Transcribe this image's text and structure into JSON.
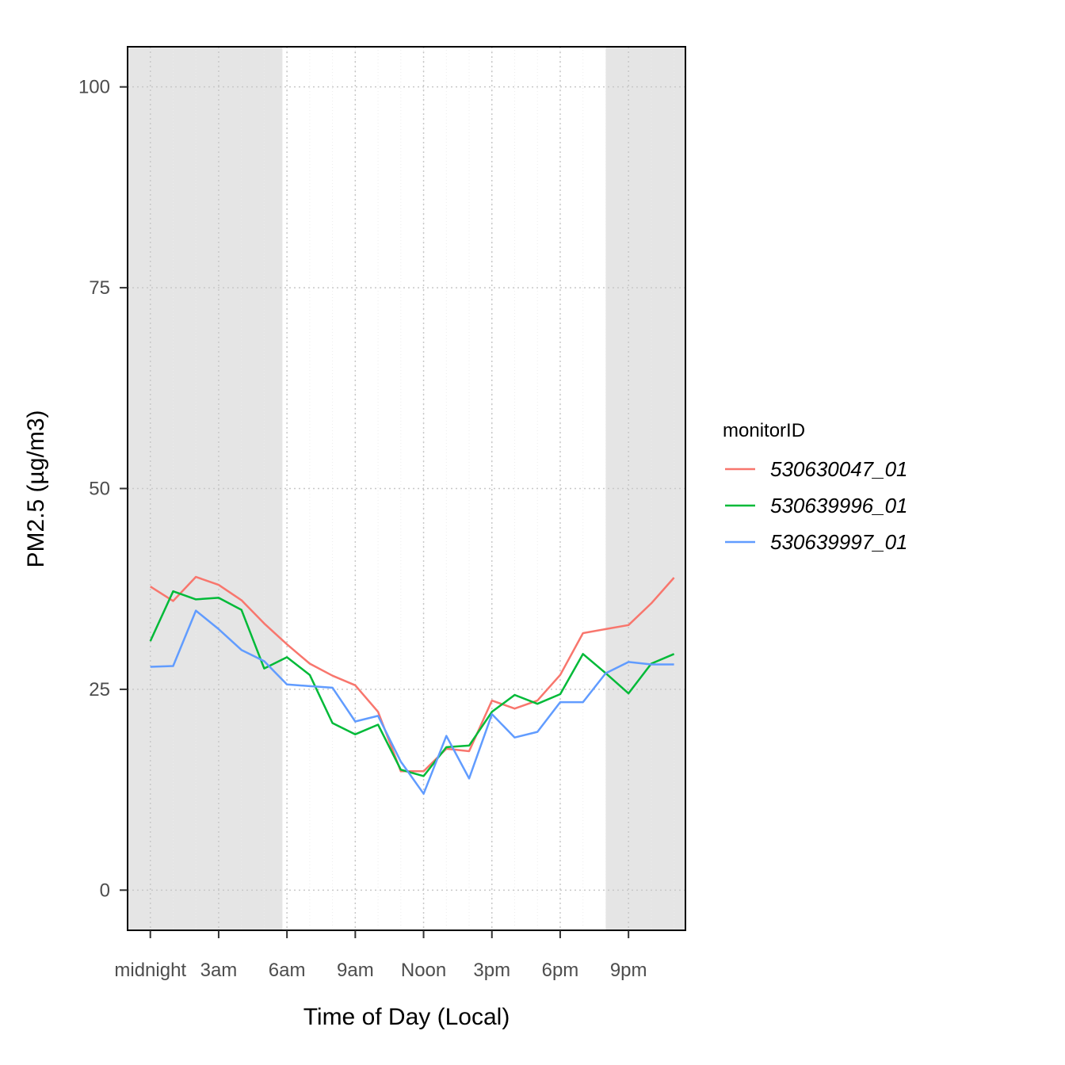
{
  "chart_data": {
    "type": "line",
    "xlabel": "Time of Day (Local)",
    "ylabel": "PM2.5 (µg/m3)",
    "xlim": [
      -1,
      23.5
    ],
    "ylim": [
      -5,
      105
    ],
    "x_ticks": [
      {
        "value": 0,
        "label": "midnight"
      },
      {
        "value": 3,
        "label": "3am"
      },
      {
        "value": 6,
        "label": "6am"
      },
      {
        "value": 9,
        "label": "9am"
      },
      {
        "value": 12,
        "label": "Noon"
      },
      {
        "value": 15,
        "label": "3pm"
      },
      {
        "value": 18,
        "label": "6pm"
      },
      {
        "value": 21,
        "label": "9pm"
      }
    ],
    "y_ticks": [
      0,
      25,
      50,
      75,
      100
    ],
    "night_shading": [
      {
        "start": -1,
        "end": 5.8
      },
      {
        "start": 20.0,
        "end": 23.5
      }
    ],
    "shading_color": "#e5e5e5",
    "grid": true,
    "legend": {
      "title": "monitorID",
      "placement": "right"
    },
    "x": [
      0,
      1,
      2,
      3,
      4,
      5,
      6,
      7,
      8,
      9,
      10,
      11,
      12,
      13,
      14,
      15,
      16,
      17,
      18,
      19,
      20,
      21,
      22,
      23
    ],
    "series": [
      {
        "name": "530630047_01",
        "color": "#f8766d",
        "values": [
          37.8,
          36.0,
          39.0,
          38.0,
          36.1,
          33.2,
          30.6,
          28.2,
          26.7,
          25.5,
          22.2,
          14.8,
          14.8,
          17.6,
          17.3,
          23.6,
          22.6,
          23.6,
          26.8,
          32.0,
          32.5,
          33.0,
          35.7,
          38.9
        ]
      },
      {
        "name": "530639996_01",
        "color": "#00ba38",
        "values": [
          31.0,
          37.2,
          36.2,
          36.4,
          34.9,
          27.6,
          29.0,
          26.8,
          20.8,
          19.4,
          20.6,
          15.0,
          14.2,
          17.8,
          18.0,
          22.2,
          24.3,
          23.2,
          24.4,
          29.4,
          27.0,
          24.5,
          28.2,
          29.4
        ]
      },
      {
        "name": "530639997_01",
        "color": "#619cff",
        "values": [
          27.8,
          27.9,
          34.8,
          32.5,
          29.9,
          28.5,
          25.6,
          25.4,
          25.2,
          21.0,
          21.7,
          16.0,
          12.0,
          19.2,
          13.9,
          21.9,
          19.0,
          19.7,
          23.4,
          23.4,
          27.0,
          28.4,
          28.1,
          28.1
        ]
      }
    ]
  }
}
